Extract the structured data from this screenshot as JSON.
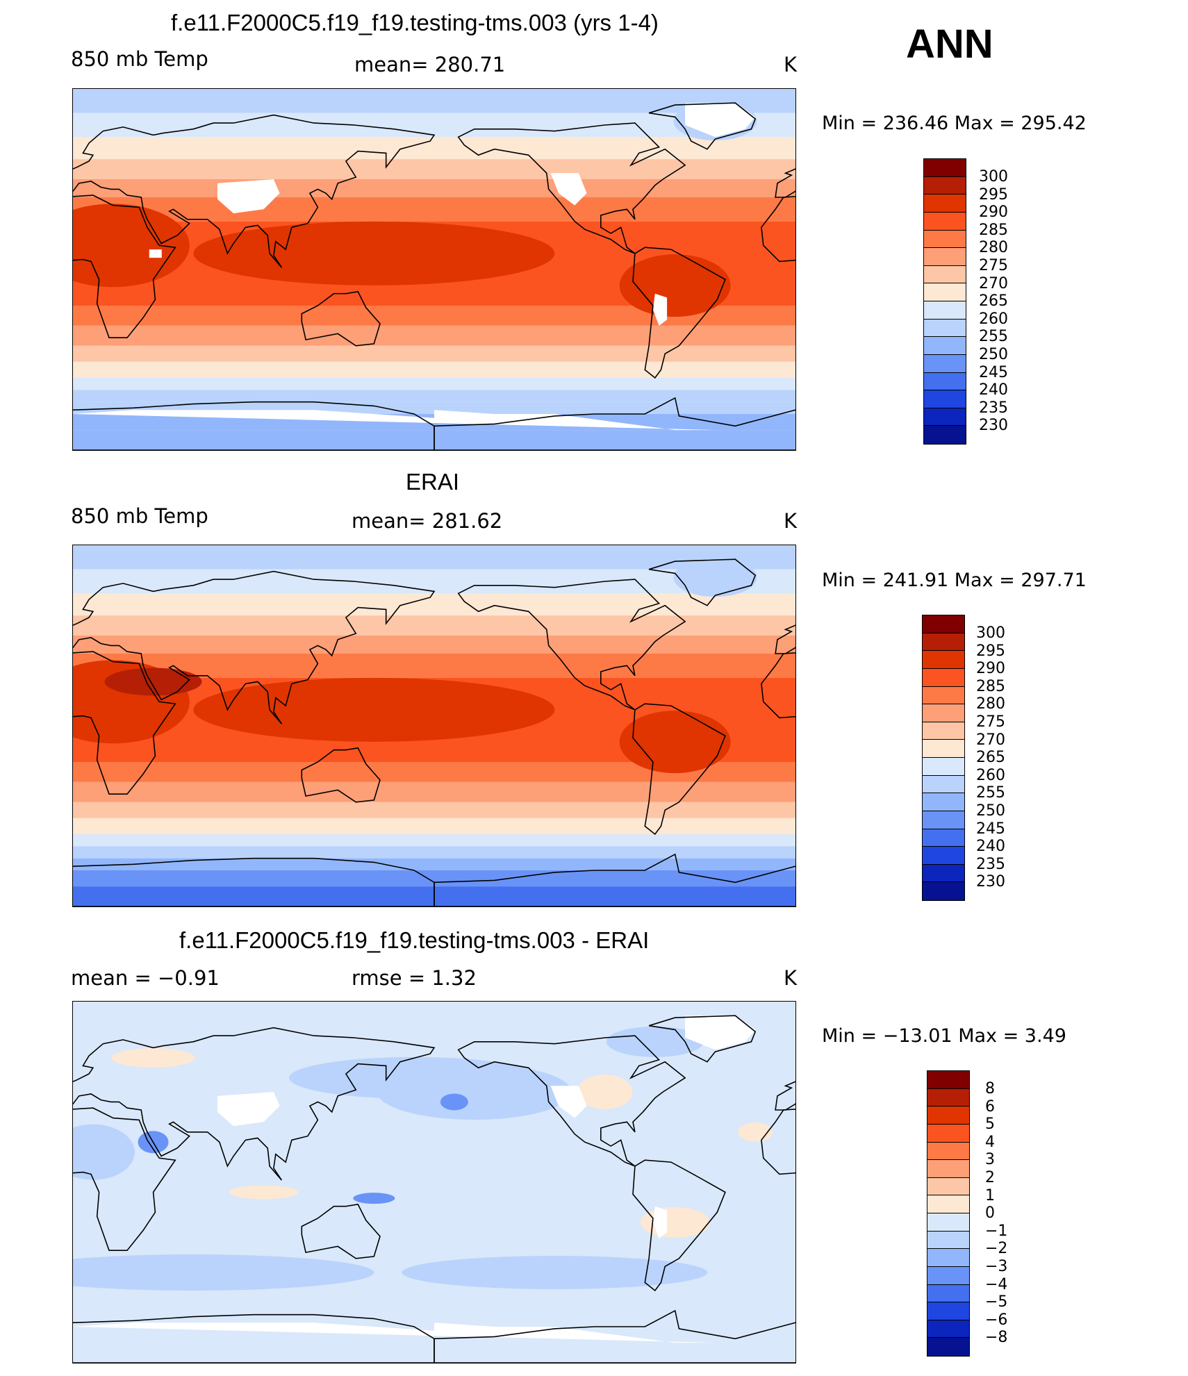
{
  "season": "ANN",
  "units": "K",
  "abs_colors": [
    "#800000",
    "#b51f06",
    "#e03500",
    "#fb5420",
    "#fd7a47",
    "#fd9f77",
    "#fdc6a6",
    "#fde8d4",
    "#d9e8fa",
    "#b9d3fc",
    "#92b6fb",
    "#6a93f7",
    "#4470ef",
    "#1f46e0",
    "#0b25bd",
    "#061291"
  ],
  "abs_ticks": [
    "300",
    "295",
    "290",
    "285",
    "280",
    "275",
    "270",
    "265",
    "260",
    "255",
    "250",
    "245",
    "240",
    "235",
    "230"
  ],
  "diff_colors": [
    "#800000",
    "#b51f06",
    "#e03500",
    "#fb5420",
    "#fd7a47",
    "#fd9f77",
    "#fdc6a6",
    "#fde8d4",
    "#d9e8fa",
    "#b9d3fc",
    "#92b6fb",
    "#6a93f7",
    "#4470ef",
    "#1f46e0",
    "#0b25bd",
    "#061291"
  ],
  "diff_ticks": [
    "8",
    "6",
    "5",
    "4",
    "3",
    "2",
    "1",
    "0",
    "−1",
    "−2",
    "−3",
    "−4",
    "−5",
    "−6",
    "−8"
  ],
  "panels": [
    {
      "title": "f.e11.F2000C5.f19_f19.testing-tms.003 (yrs 1-4)",
      "left_label": "850 mb Temp",
      "mid_label": "mean=  280.71",
      "right_label": "K",
      "minmax": "Min  =  236.46  Max  =  295.42",
      "kind": "model"
    },
    {
      "title": "ERAI",
      "left_label": "850 mb Temp",
      "mid_label": "mean=  281.62",
      "right_label": "K",
      "minmax": "Min  =  241.91  Max  =  297.71",
      "kind": "obs"
    },
    {
      "title": "f.e11.F2000C5.f19_f19.testing-tms.003 - ERAI",
      "left_label": "mean  =     −0.91",
      "mid_label": "rmse  =      1.32",
      "right_label": "K",
      "minmax": "Min  =  −13.01  Max  =     3.49",
      "kind": "diff"
    }
  ]
}
